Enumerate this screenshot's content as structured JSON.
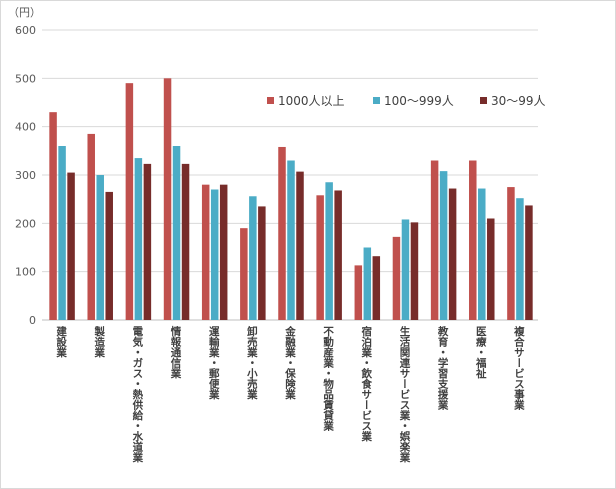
{
  "chart_data": {
    "type": "bar",
    "unit_label": "（円）",
    "ylim": [
      0,
      600
    ],
    "yticks": [
      0,
      100,
      200,
      300,
      400,
      500,
      600
    ],
    "grid": true,
    "legend_position": "top-right",
    "categories": [
      "建設業",
      "製造業",
      "電気・ガス・熱供給・水道業",
      "情報通信業",
      "運輸業・郵便業",
      "卸売業・小売業",
      "金融業・保険業",
      "不動産業・物品賃貸業",
      "宿泊業・飲食サービス業",
      "生活関連サービス業・娯楽業",
      "教育・学習支援業",
      "医療・福祉",
      "複合サービス事業"
    ],
    "series": [
      {
        "name": "1000人以上",
        "color": "#c0504d",
        "values": [
          430,
          385,
          490,
          500,
          280,
          190,
          358,
          258,
          113,
          172,
          330,
          330,
          275
        ]
      },
      {
        "name": "100～999人",
        "color": "#4bacc6",
        "values": [
          360,
          300,
          335,
          360,
          270,
          256,
          330,
          285,
          150,
          208,
          308,
          272,
          252
        ]
      },
      {
        "name": "30～99人",
        "color": "#772c2a",
        "values": [
          305,
          265,
          323,
          323,
          280,
          235,
          307,
          268,
          132,
          202,
          272,
          210,
          237
        ]
      }
    ]
  }
}
